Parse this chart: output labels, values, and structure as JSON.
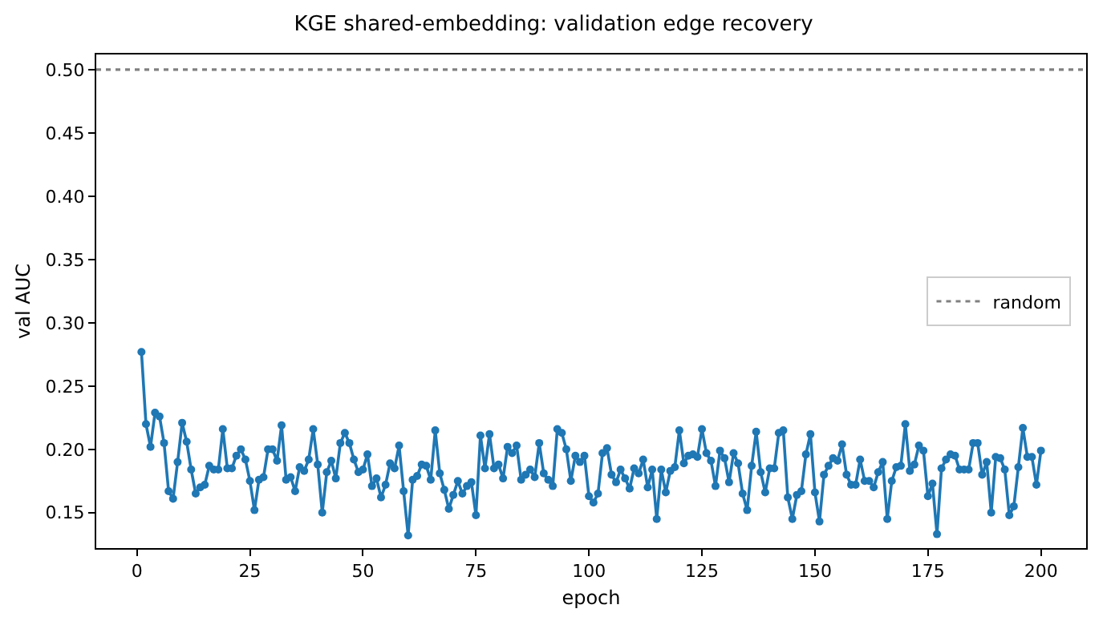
{
  "chart_data": {
    "type": "line",
    "title": "KGE shared-embedding: validation edge recovery",
    "xlabel": "epoch",
    "ylabel": "val AUC",
    "x": [
      1,
      2,
      3,
      4,
      5,
      6,
      7,
      8,
      9,
      10,
      11,
      12,
      13,
      14,
      15,
      16,
      17,
      18,
      19,
      20,
      21,
      22,
      23,
      24,
      25,
      26,
      27,
      28,
      29,
      30,
      31,
      32,
      33,
      34,
      35,
      36,
      37,
      38,
      39,
      40,
      41,
      42,
      43,
      44,
      45,
      46,
      47,
      48,
      49,
      50,
      51,
      52,
      53,
      54,
      55,
      56,
      57,
      58,
      59,
      60,
      61,
      62,
      63,
      64,
      65,
      66,
      67,
      68,
      69,
      70,
      71,
      72,
      73,
      74,
      75,
      76,
      77,
      78,
      79,
      80,
      81,
      82,
      83,
      84,
      85,
      86,
      87,
      88,
      89,
      90,
      91,
      92,
      93,
      94,
      95,
      96,
      97,
      98,
      99,
      100,
      101,
      102,
      103,
      104,
      105,
      106,
      107,
      108,
      109,
      110,
      111,
      112,
      113,
      114,
      115,
      116,
      117,
      118,
      119,
      120,
      121,
      122,
      123,
      124,
      125,
      126,
      127,
      128,
      129,
      130,
      131,
      132,
      133,
      134,
      135,
      136,
      137,
      138,
      139,
      140,
      141,
      142,
      143,
      144,
      145,
      146,
      147,
      148,
      149,
      150,
      151,
      152,
      153,
      154,
      155,
      156,
      157,
      158,
      159,
      160,
      161,
      162,
      163,
      164,
      165,
      166,
      167,
      168,
      169,
      170,
      171,
      172,
      173,
      174,
      175,
      176,
      177,
      178,
      179,
      180,
      181,
      182,
      183,
      184,
      185,
      186,
      187,
      188,
      189,
      190,
      191,
      192,
      193,
      194,
      195,
      196,
      197,
      198,
      199,
      200
    ],
    "series": [
      {
        "color": "#1f77b4",
        "values": [
          0.277,
          0.22,
          0.202,
          0.229,
          0.226,
          0.205,
          0.167,
          0.161,
          0.19,
          0.221,
          0.206,
          0.184,
          0.165,
          0.17,
          0.172,
          0.187,
          0.184,
          0.184,
          0.216,
          0.185,
          0.185,
          0.195,
          0.2,
          0.192,
          0.175,
          0.152,
          0.176,
          0.178,
          0.2,
          0.2,
          0.191,
          0.219,
          0.176,
          0.178,
          0.167,
          0.186,
          0.183,
          0.192,
          0.216,
          0.188,
          0.15,
          0.182,
          0.191,
          0.177,
          0.205,
          0.213,
          0.205,
          0.192,
          0.182,
          0.184,
          0.196,
          0.171,
          0.177,
          0.162,
          0.172,
          0.189,
          0.185,
          0.203,
          0.167,
          0.132,
          0.176,
          0.179,
          0.188,
          0.187,
          0.176,
          0.215,
          0.181,
          0.168,
          0.153,
          0.164,
          0.175,
          0.165,
          0.171,
          0.174,
          0.148,
          0.211,
          0.185,
          0.212,
          0.185,
          0.188,
          0.177,
          0.202,
          0.197,
          0.203,
          0.176,
          0.18,
          0.184,
          0.178,
          0.205,
          0.181,
          0.176,
          0.171,
          0.216,
          0.213,
          0.2,
          0.175,
          0.195,
          0.19,
          0.195,
          0.163,
          0.158,
          0.165,
          0.197,
          0.201,
          0.18,
          0.174,
          0.184,
          0.177,
          0.169,
          0.185,
          0.181,
          0.192,
          0.17,
          0.184,
          0.145,
          0.184,
          0.166,
          0.183,
          0.186,
          0.215,
          0.189,
          0.195,
          0.196,
          0.194,
          0.216,
          0.197,
          0.191,
          0.171,
          0.199,
          0.193,
          0.174,
          0.197,
          0.189,
          0.165,
          0.152,
          0.187,
          0.214,
          0.182,
          0.166,
          0.185,
          0.185,
          0.213,
          0.215,
          0.162,
          0.145,
          0.164,
          0.167,
          0.196,
          0.212,
          0.166,
          0.143,
          0.18,
          0.187,
          0.193,
          0.191,
          0.204,
          0.18,
          0.172,
          0.172,
          0.192,
          0.175,
          0.175,
          0.17,
          0.182,
          0.19,
          0.145,
          0.175,
          0.186,
          0.187,
          0.22,
          0.183,
          0.188,
          0.203,
          0.199,
          0.163,
          0.173,
          0.133,
          0.185,
          0.192,
          0.196,
          0.195,
          0.184,
          0.184,
          0.184,
          0.205,
          0.205,
          0.18,
          0.19,
          0.15,
          0.194,
          0.193,
          0.184,
          0.148,
          0.155,
          0.186,
          0.217,
          0.194,
          0.194,
          0.172,
          0.199
        ]
      }
    ],
    "xlim": [
      -9,
      210
    ],
    "xticks": [
      0,
      25,
      50,
      75,
      100,
      125,
      150,
      175,
      200
    ],
    "ylim": [
      0.122,
      0.512
    ],
    "yticks": [
      {
        "value": 0.15,
        "label": "0.15"
      },
      {
        "value": 0.2,
        "label": "0.20"
      },
      {
        "value": 0.25,
        "label": "0.25"
      },
      {
        "value": 0.3,
        "label": "0.30"
      },
      {
        "value": 0.35,
        "label": "0.35"
      },
      {
        "value": 0.4,
        "label": "0.40"
      },
      {
        "value": 0.45,
        "label": "0.45"
      },
      {
        "value": 0.5,
        "label": "0.50"
      }
    ],
    "ref_lines": [
      {
        "axis": "y",
        "value": 0.5,
        "label": "random",
        "color": "#808080",
        "line_style": "dotted"
      }
    ],
    "marker": "circle",
    "line_style": "solid",
    "legend": "right"
  }
}
